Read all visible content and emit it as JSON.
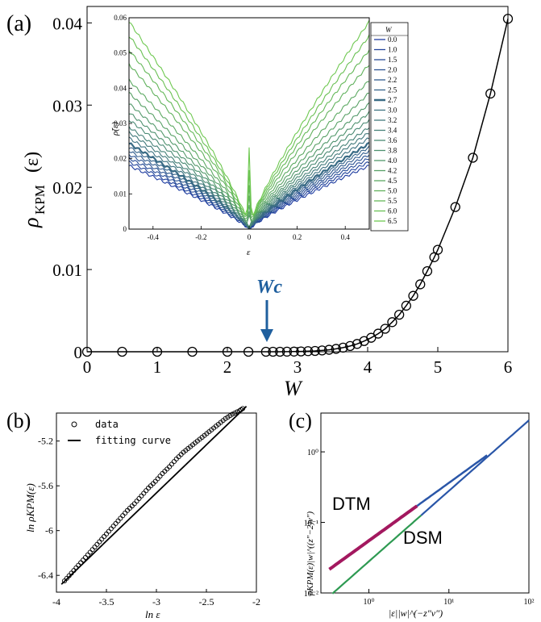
{
  "colors": {
    "main_line": "#000000",
    "wc_arrow": "#1f5f9e",
    "dtm": "#a3185f",
    "dsm": "#2e9a52",
    "blue_curve": "#2a56a8"
  },
  "chart_data": [
    {
      "panel": "(a)",
      "type": "line",
      "xlabel": "W",
      "ylabel_main": "ρ",
      "ylabel_sub": "KPM",
      "ylabel_tail": "(ε)",
      "xlim": [
        0,
        6
      ],
      "ylim": [
        0,
        0.042
      ],
      "xticks": [
        "0",
        "1",
        "2",
        "3",
        "4",
        "5",
        "6"
      ],
      "yticks": [
        "0",
        "0.01",
        "0.02",
        "0.03",
        "0.04"
      ],
      "annotation": "Wc",
      "annotation_x": 2.7,
      "x": [
        0,
        0.5,
        1.0,
        1.5,
        2.0,
        2.3,
        2.55,
        2.65,
        2.75,
        2.85,
        2.95,
        3.05,
        3.15,
        3.25,
        3.35,
        3.45,
        3.55,
        3.65,
        3.75,
        3.85,
        3.95,
        4.05,
        4.15,
        4.25,
        4.35,
        4.45,
        4.55,
        4.65,
        4.75,
        4.85,
        4.95,
        5.0,
        5.25,
        5.5,
        5.75,
        6.0
      ],
      "y": [
        0,
        0,
        0,
        0,
        0,
        0,
        0,
        0,
        0,
        1e-05,
        2e-05,
        4e-05,
        7e-05,
        0.0001,
        0.00016,
        0.00024,
        0.00035,
        0.0005,
        0.0007,
        0.00095,
        0.0013,
        0.0017,
        0.0022,
        0.0028,
        0.0036,
        0.0045,
        0.0056,
        0.0068,
        0.0082,
        0.0098,
        0.0115,
        0.0124,
        0.0176,
        0.0236,
        0.0314,
        0.0405
      ]
    },
    {
      "panel": "inset",
      "type": "line",
      "xlabel": "ε",
      "ylabel": "ρ̃(ε)",
      "xlim": [
        -0.5,
        0.5
      ],
      "ylim": [
        0,
        0.06
      ],
      "xticks": [
        "-0.4",
        "-0.2",
        "0",
        "0.2",
        "0.4"
      ],
      "yticks": [
        "0",
        "0.01",
        "0.02",
        "0.03",
        "0.04",
        "0.05",
        "0.06"
      ],
      "legend_title": "W",
      "legend_position": "right",
      "series": [
        {
          "name": "0.0",
          "slope": 0.036,
          "peak": 0
        },
        {
          "name": "1.0",
          "slope": 0.038,
          "peak": 0
        },
        {
          "name": "1.5",
          "slope": 0.04,
          "peak": 0
        },
        {
          "name": "2.0",
          "slope": 0.042,
          "peak": 0
        },
        {
          "name": "2.2",
          "slope": 0.044,
          "peak": 0
        },
        {
          "name": "2.5",
          "slope": 0.046,
          "peak": 0
        },
        {
          "name": "2.7",
          "slope": 0.048,
          "peak": 0
        },
        {
          "name": "3.0",
          "slope": 0.051,
          "peak": 0
        },
        {
          "name": "3.2",
          "slope": 0.054,
          "peak": 0
        },
        {
          "name": "3.4",
          "slope": 0.057,
          "peak": 0
        },
        {
          "name": "3.6",
          "slope": 0.061,
          "peak": 0
        },
        {
          "name": "3.8",
          "slope": 0.065,
          "peak": 0
        },
        {
          "name": "4.0",
          "slope": 0.07,
          "peak": 0.003
        },
        {
          "name": "4.2",
          "slope": 0.076,
          "peak": 0.004
        },
        {
          "name": "4.5",
          "slope": 0.083,
          "peak": 0.006
        },
        {
          "name": "5.0",
          "slope": 0.092,
          "peak": 0.009
        },
        {
          "name": "5.5",
          "slope": 0.1,
          "peak": 0.012
        },
        {
          "name": "6.0",
          "slope": 0.108,
          "peak": 0.016
        },
        {
          "name": "6.5",
          "slope": 0.116,
          "peak": 0.022
        }
      ]
    },
    {
      "panel": "(b)",
      "type": "scatter",
      "xlabel": "ln ε",
      "ylabel": "ln ρKPM(ε)",
      "xlim": [
        -4,
        -2
      ],
      "ylim": [
        -6.55,
        -4.95
      ],
      "xticks": [
        "-4",
        "-3.5",
        "-3",
        "-2.5",
        "-2"
      ],
      "yticks": [
        "-5.2",
        "-5.6",
        "-6",
        "-6.4"
      ],
      "legend": [
        "data",
        "fitting curve"
      ],
      "x": [
        -3.92,
        -3.85,
        -3.78,
        -3.71,
        -3.64,
        -3.57,
        -3.5,
        -3.43,
        -3.36,
        -3.29,
        -3.22,
        -3.15,
        -3.08,
        -3.01,
        -2.94,
        -2.87,
        -2.8,
        -2.73,
        -2.66,
        -2.59,
        -2.52,
        -2.45,
        -2.38,
        -2.31,
        -2.24,
        -2.17,
        -2.12
      ],
      "y": [
        -6.45,
        -6.38,
        -6.31,
        -6.24,
        -6.17,
        -6.1,
        -6.03,
        -5.96,
        -5.89,
        -5.82,
        -5.76,
        -5.69,
        -5.62,
        -5.56,
        -5.49,
        -5.43,
        -5.36,
        -5.3,
        -5.25,
        -5.2,
        -5.15,
        -5.1,
        -5.05,
        -5.0,
        -4.96,
        -4.93,
        -4.9
      ],
      "fit": {
        "x": [
          -3.95,
          -2.1
        ],
        "y": [
          -6.48,
          -4.89
        ]
      }
    },
    {
      "panel": "(c)",
      "type": "scatter",
      "xlabel": "|ε||w|^(−z″ν″)",
      "ylabel": "ρKPM(ε)|w|^((z″−2)ν″)",
      "scale": "log-log",
      "xticks": [
        "10⁰",
        "10¹",
        "10²"
      ],
      "yticks": [
        "10⁻²",
        "10⁻¹",
        "10⁰"
      ],
      "labels": [
        "DTM",
        "DSM"
      ],
      "series": [
        {
          "name": "DTM",
          "x_range": [
            0.3,
            4.0
          ]
        },
        {
          "name": "DSM",
          "x_range": [
            0.3,
            100
          ]
        }
      ]
    }
  ],
  "labels": {
    "a": "(a)",
    "b": "(b)",
    "c": "(c)"
  }
}
